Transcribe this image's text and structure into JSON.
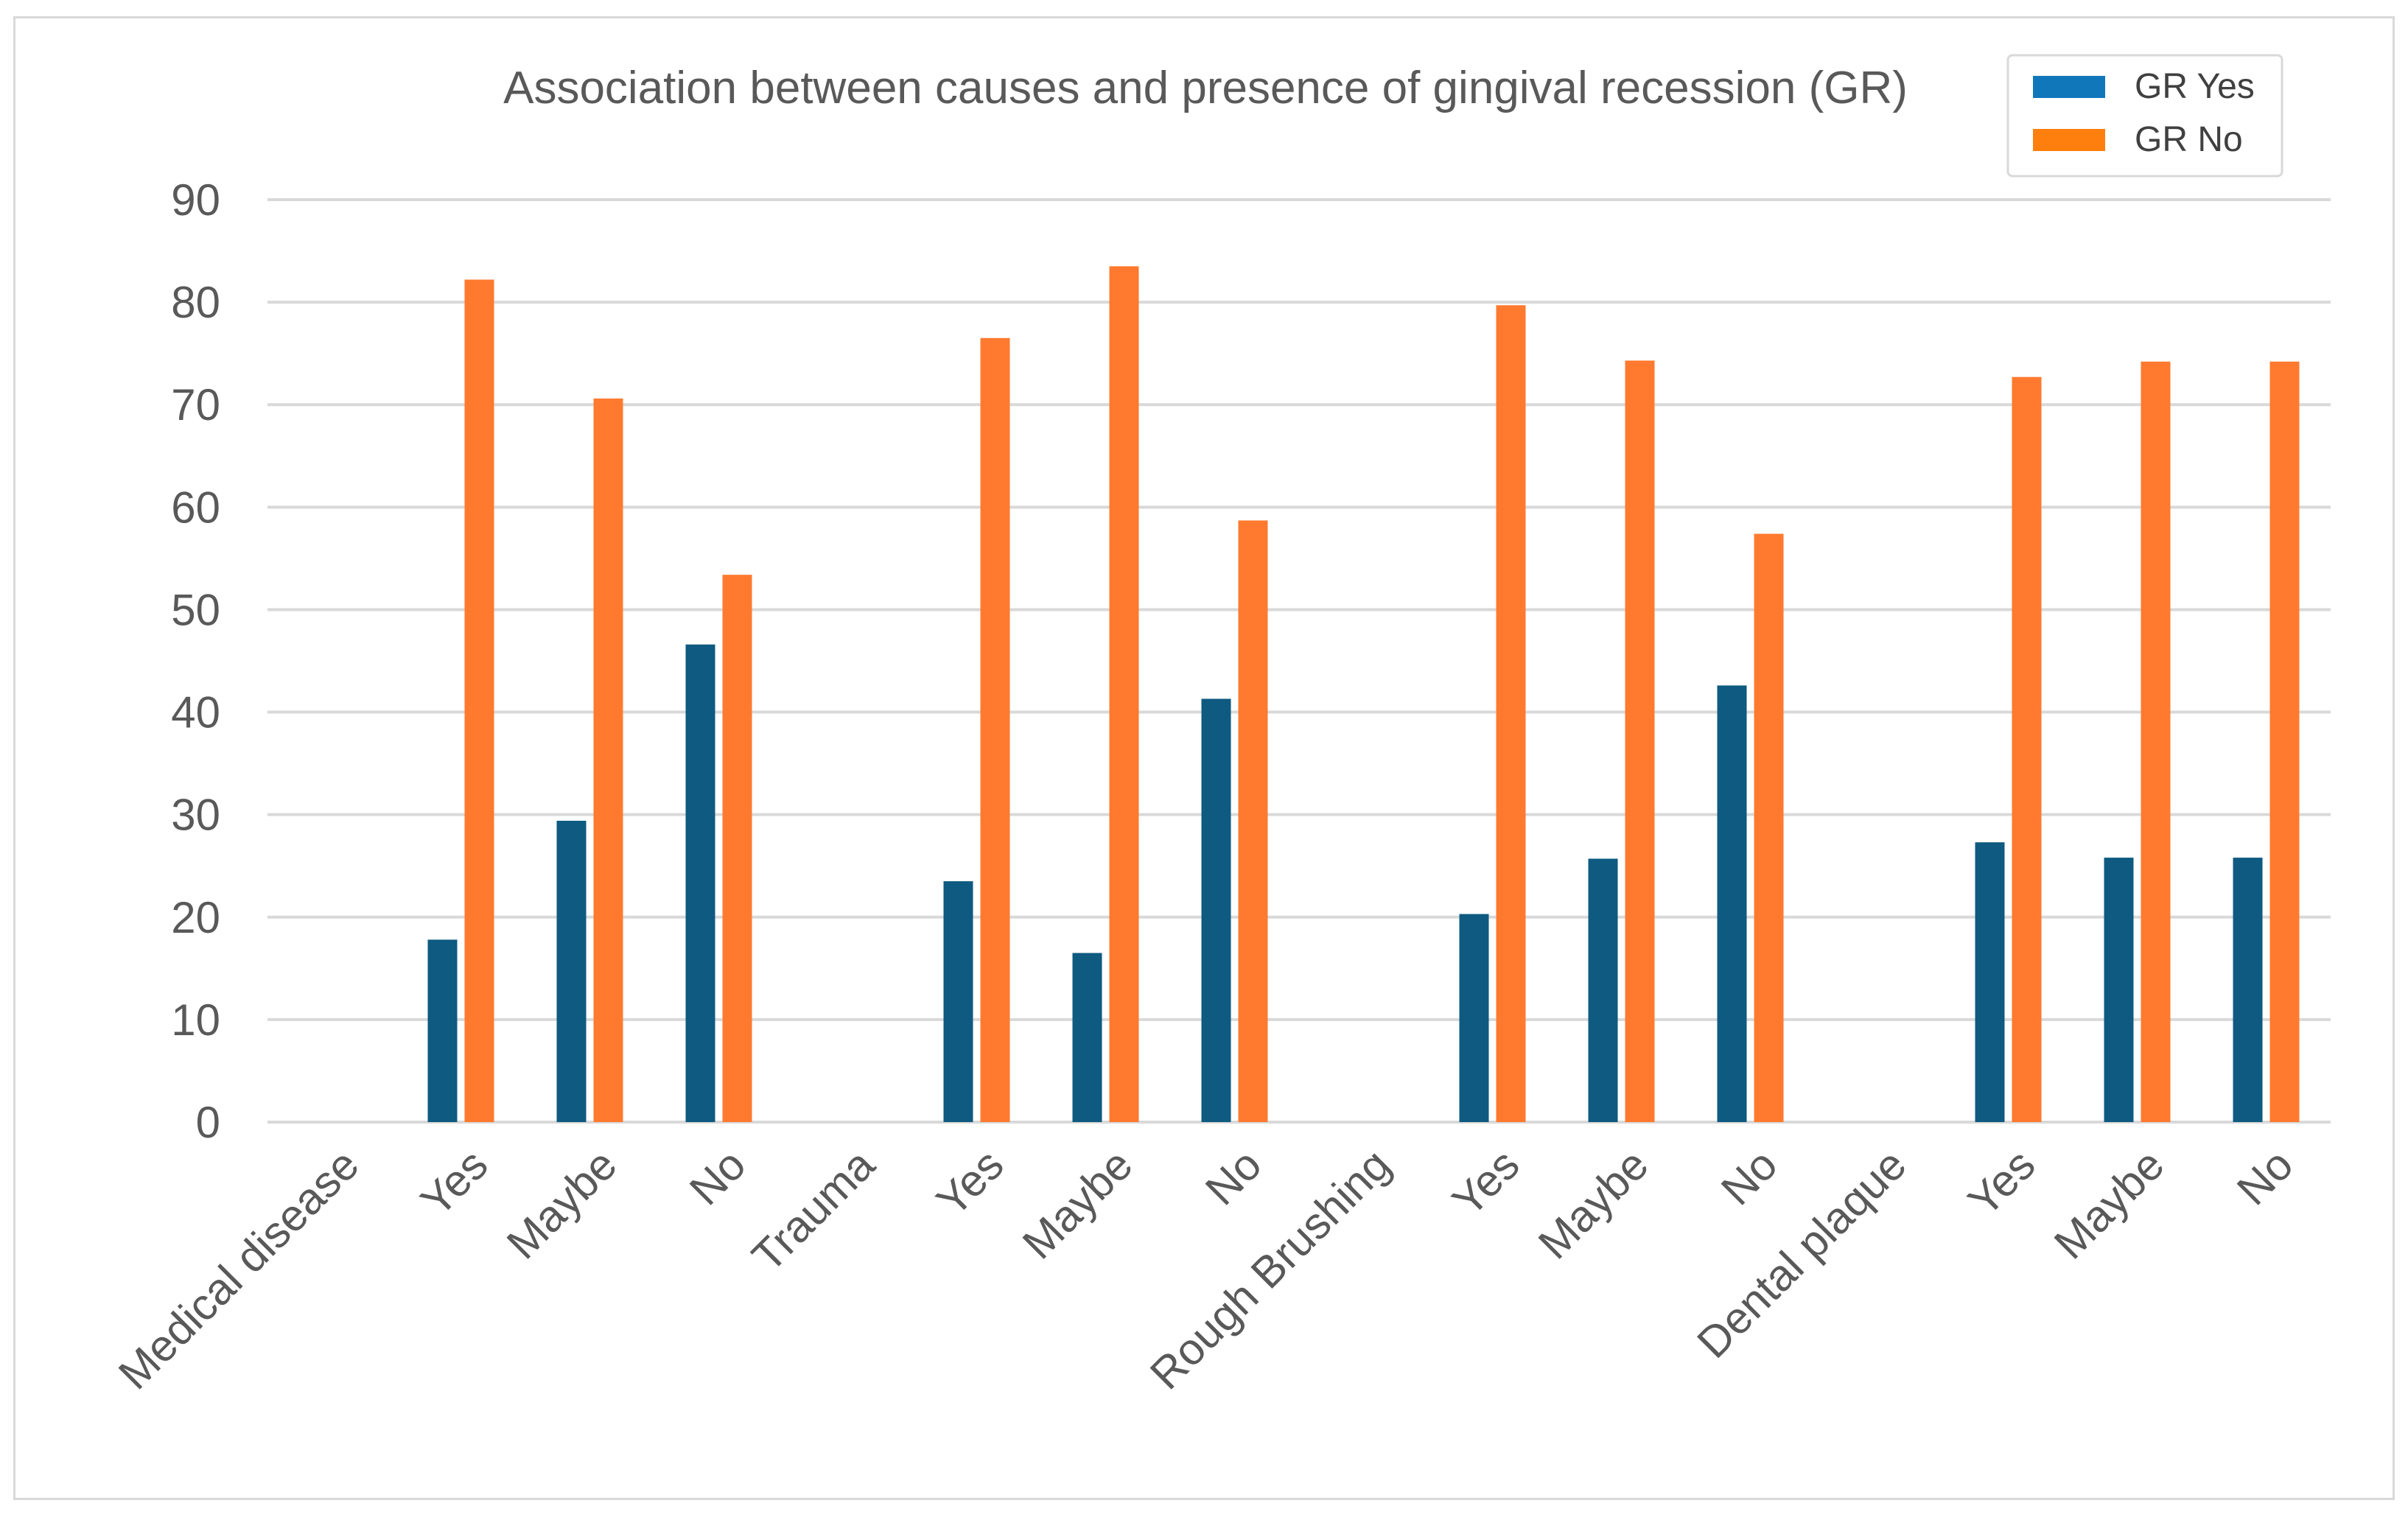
{
  "chart_data": {
    "type": "bar",
    "title": "Association between causes and presence of gingival recession (GR)",
    "xlabel": "",
    "ylabel": "",
    "ylim": [
      0,
      90
    ],
    "yticks": [
      0,
      10,
      20,
      30,
      40,
      50,
      60,
      70,
      80,
      90
    ],
    "grid": true,
    "legend_position": "top-right",
    "categories": [
      "Medical disease",
      "Yes",
      "Maybe",
      "No",
      "Trauma",
      "Yes",
      "Maybe",
      "No",
      "Rough Brushing",
      "Yes",
      "Maybe",
      "No",
      "Dental plaque",
      "Yes",
      "Maybe",
      "No"
    ],
    "series": [
      {
        "name": "GR Yes",
        "color": "#0E5A80",
        "values": [
          null,
          17.8,
          29.4,
          46.6,
          null,
          23.5,
          16.5,
          41.3,
          null,
          20.3,
          25.7,
          42.6,
          null,
          27.3,
          25.8,
          25.8
        ]
      },
      {
        "name": "GR No",
        "color": "#FF7A2F",
        "values": [
          null,
          82.2,
          70.6,
          53.4,
          null,
          76.5,
          83.5,
          58.7,
          null,
          79.7,
          74.3,
          57.4,
          null,
          72.7,
          74.2,
          74.2
        ]
      }
    ],
    "legend_colors": [
      "#1177BB",
      "#FF7F0E"
    ]
  }
}
